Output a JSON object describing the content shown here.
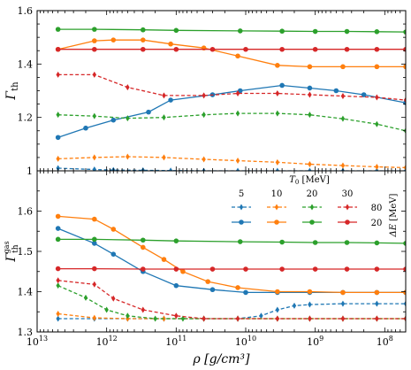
{
  "chart_data": [
    {
      "type": "line",
      "panel": "top",
      "x_scale": "log",
      "x_reversed": true,
      "xlim": [
        10000000000000.0,
        50000000.0
      ],
      "ylim": [
        1.0,
        1.6
      ],
      "ylabel": "Γ_th",
      "yticks": [
        "1",
        "1.2",
        "1.4",
        "1.6"
      ],
      "x": [
        5000000000000.0,
        1500000000000.0,
        800000000000.0,
        200000000000.0,
        40000000000.0,
        30000000000.0,
        12000000000.0,
        4000000000.0,
        1200000000.0,
        350000000.0,
        100000000.0,
        50000000.0
      ],
      "series": [
        {
          "name": "5",
          "style": "solid",
          "color": "#1f77b4",
          "x": [
            5000000000000.0,
            2000000000000.0,
            800000000000.0,
            250000000000.0,
            120000000000.0,
            30000000000.0,
            12000000000.0,
            3000000000.0,
            1200000000.0,
            500000000.0,
            200000000.0,
            50000000.0
          ],
          "values": [
            1.125,
            1.16,
            1.19,
            1.22,
            1.265,
            1.285,
            1.3,
            1.32,
            1.31,
            1.3,
            1.285,
            1.255
          ]
        },
        {
          "name": "10",
          "style": "solid",
          "color": "#ff7f0e",
          "x": [
            5000000000000.0,
            1500000000000.0,
            800000000000.0,
            300000000000.0,
            120000000000.0,
            40000000000.0,
            13000000000.0,
            3500000000.0,
            1200000000.0,
            400000000.0,
            130000000.0,
            50000000.0
          ],
          "values": [
            1.455,
            1.487,
            1.49,
            1.49,
            1.475,
            1.46,
            1.43,
            1.395,
            1.39,
            1.39,
            1.39,
            1.39
          ]
        },
        {
          "name": "20",
          "style": "solid",
          "color": "#2ca02c",
          "x": [
            5000000000000.0,
            1500000000000.0,
            300000000000.0,
            100000000000.0,
            12000000000.0,
            3000000000.0,
            1000000000.0,
            350000000.0,
            130000000.0,
            50000000.0
          ],
          "values": [
            1.53,
            1.53,
            1.528,
            1.526,
            1.524,
            1.523,
            1.522,
            1.522,
            1.521,
            1.52
          ]
        },
        {
          "name": "30",
          "style": "solid",
          "color": "#d62728",
          "x": [
            5000000000000.0,
            1500000000000.0,
            300000000000.0,
            100000000000.0,
            30000000000.0,
            10000000000.0,
            3000000000.0,
            1000000000.0,
            350000000.0,
            130000000.0,
            50000000.0
          ],
          "values": [
            1.455,
            1.455,
            1.455,
            1.455,
            1.455,
            1.455,
            1.455,
            1.455,
            1.455,
            1.455,
            1.455
          ]
        },
        {
          "name": "5",
          "style": "dashed",
          "color": "#1f77b4",
          "x": [
            5000000000000.0,
            1500000000000.0,
            800000000000.0,
            300000000000.0,
            120000000000.0,
            40000000000.0,
            13000000000.0,
            3500000000.0,
            1200000000.0,
            400000000.0,
            130000000.0,
            50000000.0
          ],
          "values": [
            1.01,
            1.005,
            1.003,
            1.002,
            1.001,
            1.0,
            1.0,
            1.0,
            1.0,
            1.0,
            1.0,
            1.0
          ]
        },
        {
          "name": "10",
          "style": "dashed",
          "color": "#ff7f0e",
          "x": [
            5000000000000.0,
            1500000000000.0,
            500000000000.0,
            150000000000.0,
            40000000000.0,
            13000000000.0,
            3500000000.0,
            1200000000.0,
            400000000.0,
            130000000.0,
            50000000.0
          ],
          "values": [
            1.045,
            1.05,
            1.053,
            1.05,
            1.043,
            1.038,
            1.032,
            1.025,
            1.02,
            1.015,
            1.012
          ]
        },
        {
          "name": "20",
          "style": "dashed",
          "color": "#2ca02c",
          "x": [
            5000000000000.0,
            1500000000000.0,
            500000000000.0,
            150000000000.0,
            40000000000.0,
            13000000000.0,
            3500000000.0,
            1200000000.0,
            400000000.0,
            130000000.0,
            50000000.0
          ],
          "values": [
            1.21,
            1.205,
            1.197,
            1.2,
            1.21,
            1.215,
            1.215,
            1.21,
            1.195,
            1.175,
            1.15
          ]
        },
        {
          "name": "30",
          "style": "dashed",
          "color": "#d62728",
          "x": [
            5000000000000.0,
            1500000000000.0,
            500000000000.0,
            150000000000.0,
            40000000000.0,
            13000000000.0,
            3500000000.0,
            1200000000.0,
            400000000.0,
            130000000.0,
            50000000.0
          ],
          "values": [
            1.36,
            1.36,
            1.313,
            1.282,
            1.282,
            1.29,
            1.29,
            1.285,
            1.28,
            1.275,
            1.265
          ]
        }
      ]
    },
    {
      "type": "line",
      "panel": "bottom",
      "x_scale": "log",
      "x_reversed": true,
      "xlim": [
        10000000000000.0,
        50000000.0
      ],
      "ylim": [
        1.3,
        1.7
      ],
      "xlabel": "ρ [g/cm³]",
      "ylabel": "Γ_th^gas",
      "xticks": [
        "10^13",
        "10^12",
        "10^11",
        "10^10",
        "10^9",
        "10^8"
      ],
      "yticks": [
        "1.3",
        "1.4",
        "1.5",
        "1.6"
      ],
      "legend": {
        "title": "T_0 [MeV]",
        "columns": [
          "5",
          "10",
          "20",
          "30"
        ],
        "rows_title": "ΔE [MeV]",
        "rows": [
          "80",
          "20"
        ]
      },
      "series": [
        {
          "name": "5",
          "style": "solid",
          "color": "#1f77b4",
          "x": [
            5000000000000.0,
            1500000000000.0,
            800000000000.0,
            300000000000.0,
            100000000000.0,
            30000000000.0,
            10000000000.0,
            3500000000.0,
            1200000000.0,
            400000000.0,
            130000000.0,
            50000000.0
          ],
          "values": [
            1.557,
            1.52,
            1.493,
            1.45,
            1.415,
            1.405,
            1.398,
            1.398,
            1.398,
            1.398,
            1.398,
            1.398
          ]
        },
        {
          "name": "10",
          "style": "solid",
          "color": "#ff7f0e",
          "x": [
            5000000000000.0,
            1500000000000.0,
            800000000000.0,
            300000000000.0,
            150000000000.0,
            80000000000.0,
            35000000000.0,
            13000000000.0,
            3500000000.0,
            1200000000.0,
            400000000.0,
            130000000.0,
            50000000.0
          ],
          "values": [
            1.587,
            1.58,
            1.555,
            1.51,
            1.48,
            1.45,
            1.425,
            1.41,
            1.4,
            1.4,
            1.398,
            1.398,
            1.398
          ]
        },
        {
          "name": "20",
          "style": "solid",
          "color": "#2ca02c",
          "x": [
            5000000000000.0,
            1500000000000.0,
            300000000000.0,
            100000000000.0,
            12000000000.0,
            3000000000.0,
            1000000000.0,
            350000000.0,
            130000000.0,
            50000000.0
          ],
          "values": [
            1.53,
            1.53,
            1.528,
            1.526,
            1.524,
            1.523,
            1.522,
            1.522,
            1.521,
            1.52
          ]
        },
        {
          "name": "30",
          "style": "solid",
          "color": "#d62728",
          "x": [
            5000000000000.0,
            1500000000000.0,
            300000000000.0,
            100000000000.0,
            30000000000.0,
            10000000000.0,
            3000000000.0,
            1000000000.0,
            350000000.0,
            130000000.0,
            50000000.0
          ],
          "values": [
            1.457,
            1.457,
            1.456,
            1.456,
            1.456,
            1.456,
            1.456,
            1.456,
            1.456,
            1.456,
            1.456
          ]
        },
        {
          "name": "5",
          "style": "dashed",
          "color": "#1f77b4",
          "x": [
            5000000000000.0,
            1500000000000.0,
            500000000000.0,
            150000000000.0,
            40000000000.0,
            13000000000.0,
            6000000000.0,
            3500000000.0,
            2000000000.0,
            1200000000.0,
            400000000.0,
            130000000.0,
            50000000.0
          ],
          "values": [
            1.333,
            1.333,
            1.333,
            1.333,
            1.333,
            1.333,
            1.34,
            1.355,
            1.365,
            1.368,
            1.37,
            1.37,
            1.37
          ]
        },
        {
          "name": "10",
          "style": "dashed",
          "color": "#ff7f0e",
          "x": [
            5000000000000.0,
            1500000000000.0,
            500000000000.0,
            150000000000.0,
            40000000000.0,
            13000000000.0,
            3500000000.0,
            1200000000.0,
            400000000.0,
            130000000.0,
            50000000.0
          ],
          "values": [
            1.345,
            1.335,
            1.333,
            1.333,
            1.333,
            1.333,
            1.333,
            1.333,
            1.333,
            1.333,
            1.333
          ]
        },
        {
          "name": "20",
          "style": "dashed",
          "color": "#2ca02c",
          "x": [
            5000000000000.0,
            2000000000000.0,
            1000000000000.0,
            500000000000.0,
            200000000000.0,
            80000000000.0,
            40000000000.0,
            13000000000.0,
            3500000000.0,
            1200000000.0,
            400000000.0,
            130000000.0,
            50000000.0
          ],
          "values": [
            1.415,
            1.385,
            1.355,
            1.34,
            1.333,
            1.333,
            1.333,
            1.333,
            1.333,
            1.333,
            1.333,
            1.333,
            1.333
          ]
        },
        {
          "name": "30",
          "style": "dashed",
          "color": "#d62728",
          "x": [
            5000000000000.0,
            1500000000000.0,
            800000000000.0,
            300000000000.0,
            100000000000.0,
            40000000000.0,
            13000000000.0,
            3500000000.0,
            1200000000.0,
            400000000.0,
            130000000.0,
            50000000.0
          ],
          "values": [
            1.428,
            1.418,
            1.383,
            1.355,
            1.34,
            1.333,
            1.333,
            1.333,
            1.333,
            1.333,
            1.333,
            1.333
          ]
        }
      ]
    }
  ]
}
